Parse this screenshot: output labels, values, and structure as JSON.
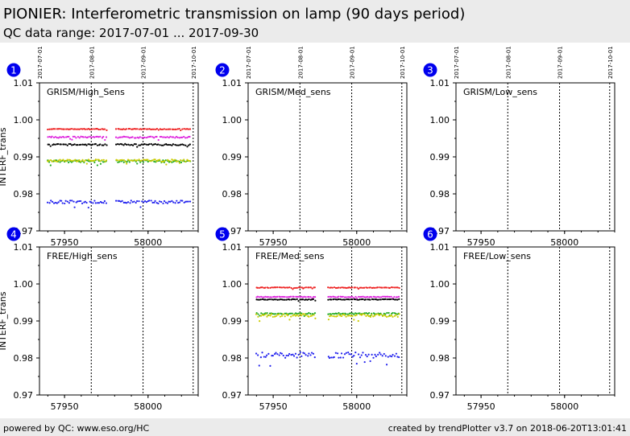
{
  "header": {
    "title": "PIONIER: Interferometric transmission on lamp (90 days period)",
    "subtitle": "QC data range: 2017-07-01 ... 2017-09-30"
  },
  "footer": {
    "left": "powered by QC: www.eso.org/HC",
    "right": "created by trendPlotter v3.7 on 2018-06-20T13:01:41"
  },
  "colors": {
    "red": "#ee2222",
    "magenta": "#dd22dd",
    "black": "#000000",
    "green": "#22aa22",
    "yellow": "#cccc00",
    "blue": "#2222ee",
    "badge": "#0000ee"
  },
  "chart_data": {
    "type": "scatter",
    "xlim": [
      57935,
      58030
    ],
    "ylim": [
      0.97,
      1.01
    ],
    "ylabel": "INTERF_trans",
    "yticks": [
      0.97,
      0.98,
      0.99,
      1.0,
      1.01
    ],
    "xticks": [
      57950,
      58000
    ],
    "date_markers": [
      {
        "label": "2017-07-01",
        "mjd": 57935
      },
      {
        "label": "2017-08-01",
        "mjd": 57966
      },
      {
        "label": "2017-09-01",
        "mjd": 57997
      },
      {
        "label": "2017-10-01",
        "mjd": 58027
      }
    ],
    "panels": [
      {
        "id": "1",
        "label": "GRISM/High_Sens",
        "segments": [
          [
            57940,
            57976
          ],
          [
            57981,
            58026
          ]
        ],
        "series": [
          {
            "color": "red",
            "level": 0.9975,
            "jitter": 0.0001
          },
          {
            "color": "magenta",
            "level": 0.9953,
            "jitter": 0.0002
          },
          {
            "color": "black",
            "level": 0.9933,
            "jitter": 0.0002
          },
          {
            "color": "green",
            "level": 0.9888,
            "jitter": 0.0003
          },
          {
            "color": "yellow",
            "level": 0.989,
            "jitter": 0.0003
          },
          {
            "color": "blue",
            "level": 0.9778,
            "jitter": 0.0004
          }
        ]
      },
      {
        "id": "2",
        "label": "GRISM/Med_sens",
        "segments": [],
        "series": []
      },
      {
        "id": "3",
        "label": "GRISM/Low_sens",
        "segments": [],
        "series": []
      },
      {
        "id": "4",
        "label": "FREE/High_sens",
        "segments": [],
        "series": []
      },
      {
        "id": "5",
        "label": "FREE/Med_sens",
        "segments": [
          [
            57940,
            57976
          ],
          [
            57983,
            58026
          ]
        ],
        "series": [
          {
            "color": "red",
            "level": 0.999,
            "jitter": 0.0001
          },
          {
            "color": "magenta",
            "level": 0.9965,
            "jitter": 0.0001
          },
          {
            "color": "black",
            "level": 0.9958,
            "jitter": 0.0001
          },
          {
            "color": "green",
            "level": 0.992,
            "jitter": 0.0002
          },
          {
            "color": "yellow",
            "level": 0.9915,
            "jitter": 0.0004
          },
          {
            "color": "blue",
            "level": 0.9808,
            "jitter": 0.0008
          }
        ]
      },
      {
        "id": "6",
        "label": "FREE/Low_sens",
        "segments": [],
        "series": []
      }
    ]
  }
}
